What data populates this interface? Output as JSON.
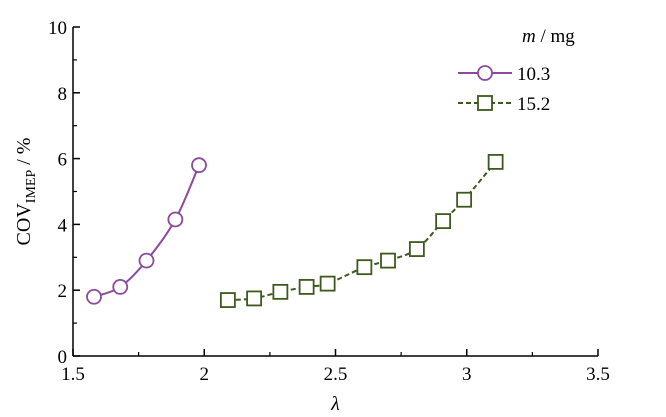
{
  "chart_data": {
    "type": "line",
    "xlabel": "λ",
    "ylabel": {
      "base": "COV",
      "sub": "IMEP",
      "unit": " / %"
    },
    "xlim": [
      1.5,
      3.5
    ],
    "ylim": [
      0,
      10
    ],
    "x_ticks": [
      "1.5",
      "2",
      "2.5",
      "3",
      "3.5"
    ],
    "y_ticks": [
      "0",
      "2",
      "4",
      "6",
      "8",
      "10"
    ],
    "grid": false,
    "legend": {
      "position": "top-right",
      "title_var": "m",
      "title_unit": " / mg"
    },
    "series": [
      {
        "name": "10.3",
        "marker": "circle",
        "line": "solid",
        "color": "#8a4a9e",
        "x": [
          1.58,
          1.68,
          1.78,
          1.89,
          1.98
        ],
        "y": [
          1.8,
          2.1,
          2.9,
          4.15,
          5.8
        ]
      },
      {
        "name": "15.2",
        "marker": "square",
        "line": "dashed",
        "color": "#3d5a1e",
        "x": [
          2.09,
          2.19,
          2.29,
          2.39,
          2.47,
          2.61,
          2.7,
          2.81,
          2.91,
          2.99,
          3.11
        ],
        "y": [
          1.7,
          1.75,
          1.95,
          2.1,
          2.2,
          2.7,
          2.9,
          3.25,
          4.1,
          4.75,
          5.9
        ]
      }
    ]
  }
}
